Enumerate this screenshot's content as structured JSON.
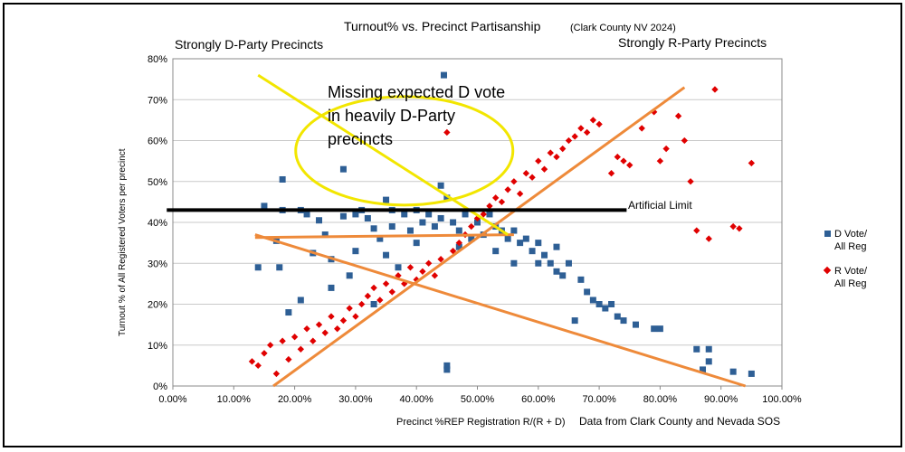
{
  "chart_data": {
    "type": "scatter",
    "title": "Turnout% vs. Precinct Partisanship",
    "subtitle": "(Clark County NV 2024)",
    "xlabel": "Precinct %REP Registration R/(R + D)",
    "ylabel": "Turnout % of All Registered Voters per precinct",
    "xlim": [
      0,
      1
    ],
    "ylim": [
      0,
      0.8
    ],
    "x_ticks": [
      "0.00%",
      "10.00%",
      "20.00%",
      "30.00%",
      "40.00%",
      "50.00%",
      "60.00%",
      "70.00%",
      "80.00%",
      "90.00%",
      "100.00%"
    ],
    "y_ticks": [
      "0%",
      "10%",
      "20%",
      "30%",
      "40%",
      "50%",
      "60%",
      "70%",
      "80%"
    ],
    "grid": "horizontal",
    "legend_position": "right",
    "series": [
      {
        "name": "D Vote/ All Reg",
        "marker": "square",
        "color": "#2e5f95",
        "trend": [
          [
            0.135,
            0.37
          ],
          [
            0.94,
            0.0
          ]
        ],
        "points": [
          [
            0.15,
            0.44
          ],
          [
            0.14,
            0.29
          ],
          [
            0.18,
            0.505
          ],
          [
            0.18,
            0.43
          ],
          [
            0.17,
            0.355
          ],
          [
            0.175,
            0.29
          ],
          [
            0.19,
            0.18
          ],
          [
            0.21,
            0.43
          ],
          [
            0.22,
            0.42
          ],
          [
            0.21,
            0.21
          ],
          [
            0.23,
            0.325
          ],
          [
            0.24,
            0.405
          ],
          [
            0.25,
            0.37
          ],
          [
            0.26,
            0.31
          ],
          [
            0.26,
            0.24
          ],
          [
            0.28,
            0.53
          ],
          [
            0.28,
            0.415
          ],
          [
            0.3,
            0.42
          ],
          [
            0.31,
            0.43
          ],
          [
            0.32,
            0.41
          ],
          [
            0.3,
            0.33
          ],
          [
            0.29,
            0.27
          ],
          [
            0.33,
            0.385
          ],
          [
            0.34,
            0.36
          ],
          [
            0.35,
            0.455
          ],
          [
            0.36,
            0.43
          ],
          [
            0.36,
            0.39
          ],
          [
            0.35,
            0.32
          ],
          [
            0.33,
            0.2
          ],
          [
            0.38,
            0.42
          ],
          [
            0.39,
            0.38
          ],
          [
            0.37,
            0.29
          ],
          [
            0.4,
            0.43
          ],
          [
            0.41,
            0.4
          ],
          [
            0.4,
            0.35
          ],
          [
            0.42,
            0.42
          ],
          [
            0.43,
            0.39
          ],
          [
            0.44,
            0.41
          ],
          [
            0.44,
            0.49
          ],
          [
            0.45,
            0.46
          ],
          [
            0.445,
            0.76
          ],
          [
            0.45,
            0.05
          ],
          [
            0.45,
            0.04
          ],
          [
            0.46,
            0.4
          ],
          [
            0.47,
            0.38
          ],
          [
            0.47,
            0.34
          ],
          [
            0.48,
            0.42
          ],
          [
            0.49,
            0.36
          ],
          [
            0.5,
            0.4
          ],
          [
            0.51,
            0.37
          ],
          [
            0.52,
            0.42
          ],
          [
            0.53,
            0.39
          ],
          [
            0.53,
            0.33
          ],
          [
            0.54,
            0.38
          ],
          [
            0.55,
            0.36
          ],
          [
            0.56,
            0.38
          ],
          [
            0.56,
            0.3
          ],
          [
            0.57,
            0.35
          ],
          [
            0.58,
            0.36
          ],
          [
            0.59,
            0.33
          ],
          [
            0.6,
            0.35
          ],
          [
            0.6,
            0.3
          ],
          [
            0.61,
            0.32
          ],
          [
            0.62,
            0.3
          ],
          [
            0.63,
            0.34
          ],
          [
            0.63,
            0.28
          ],
          [
            0.64,
            0.27
          ],
          [
            0.65,
            0.3
          ],
          [
            0.66,
            0.16
          ],
          [
            0.67,
            0.26
          ],
          [
            0.68,
            0.23
          ],
          [
            0.69,
            0.21
          ],
          [
            0.7,
            0.2
          ],
          [
            0.71,
            0.19
          ],
          [
            0.72,
            0.2
          ],
          [
            0.73,
            0.17
          ],
          [
            0.74,
            0.16
          ],
          [
            0.76,
            0.15
          ],
          [
            0.79,
            0.14
          ],
          [
            0.8,
            0.14
          ],
          [
            0.86,
            0.09
          ],
          [
            0.88,
            0.09
          ],
          [
            0.88,
            0.06
          ],
          [
            0.87,
            0.04
          ],
          [
            0.92,
            0.035
          ],
          [
            0.95,
            0.03
          ]
        ]
      },
      {
        "name": "R Vote/ All Reg",
        "marker": "diamond",
        "color": "#e00000",
        "trend": [
          [
            0.165,
            0.0
          ],
          [
            0.84,
            0.73
          ]
        ],
        "points": [
          [
            0.13,
            0.06
          ],
          [
            0.14,
            0.05
          ],
          [
            0.15,
            0.08
          ],
          [
            0.16,
            0.1
          ],
          [
            0.17,
            0.03
          ],
          [
            0.18,
            0.11
          ],
          [
            0.19,
            0.065
          ],
          [
            0.2,
            0.12
          ],
          [
            0.21,
            0.09
          ],
          [
            0.22,
            0.14
          ],
          [
            0.23,
            0.11
          ],
          [
            0.24,
            0.15
          ],
          [
            0.25,
            0.13
          ],
          [
            0.26,
            0.17
          ],
          [
            0.27,
            0.14
          ],
          [
            0.28,
            0.16
          ],
          [
            0.29,
            0.19
          ],
          [
            0.3,
            0.17
          ],
          [
            0.31,
            0.2
          ],
          [
            0.32,
            0.22
          ],
          [
            0.33,
            0.24
          ],
          [
            0.34,
            0.21
          ],
          [
            0.35,
            0.25
          ],
          [
            0.36,
            0.23
          ],
          [
            0.37,
            0.27
          ],
          [
            0.38,
            0.25
          ],
          [
            0.39,
            0.29
          ],
          [
            0.4,
            0.26
          ],
          [
            0.41,
            0.28
          ],
          [
            0.42,
            0.3
          ],
          [
            0.43,
            0.27
          ],
          [
            0.44,
            0.31
          ],
          [
            0.45,
            0.62
          ],
          [
            0.46,
            0.33
          ],
          [
            0.47,
            0.35
          ],
          [
            0.48,
            0.37
          ],
          [
            0.49,
            0.39
          ],
          [
            0.5,
            0.41
          ],
          [
            0.51,
            0.42
          ],
          [
            0.52,
            0.44
          ],
          [
            0.53,
            0.46
          ],
          [
            0.54,
            0.45
          ],
          [
            0.55,
            0.48
          ],
          [
            0.56,
            0.5
          ],
          [
            0.57,
            0.47
          ],
          [
            0.58,
            0.52
          ],
          [
            0.59,
            0.51
          ],
          [
            0.6,
            0.55
          ],
          [
            0.61,
            0.53
          ],
          [
            0.62,
            0.57
          ],
          [
            0.63,
            0.56
          ],
          [
            0.64,
            0.58
          ],
          [
            0.65,
            0.6
          ],
          [
            0.66,
            0.61
          ],
          [
            0.67,
            0.63
          ],
          [
            0.68,
            0.62
          ],
          [
            0.69,
            0.65
          ],
          [
            0.7,
            0.64
          ],
          [
            0.72,
            0.52
          ],
          [
            0.73,
            0.56
          ],
          [
            0.74,
            0.55
          ],
          [
            0.75,
            0.54
          ],
          [
            0.77,
            0.63
          ],
          [
            0.79,
            0.67
          ],
          [
            0.8,
            0.55
          ],
          [
            0.81,
            0.58
          ],
          [
            0.83,
            0.66
          ],
          [
            0.84,
            0.6
          ],
          [
            0.85,
            0.5
          ],
          [
            0.86,
            0.38
          ],
          [
            0.88,
            0.36
          ],
          [
            0.89,
            0.725
          ],
          [
            0.92,
            0.39
          ],
          [
            0.93,
            0.385
          ],
          [
            0.95,
            0.545
          ]
        ]
      }
    ],
    "annotations": {
      "strongly_d": "Strongly D-Party Precincts",
      "strongly_r": "Strongly R-Party Precincts",
      "missing_d_line1": "Missing expected D vote",
      "missing_d_line2": "in heavily D-Party",
      "missing_d_line3": "precincts",
      "artificial_limit": "Artificial Limit",
      "artificial_limit_value": 0.43,
      "data_source": "Data from Clark County and Nevada SOS",
      "overlay_color_limit": "#000000",
      "overlay_color_ellipse": "#f2e600",
      "overlay_color_trend": "#ee8a3a"
    },
    "legend": [
      {
        "line1": "D Vote/",
        "line2": "All Reg"
      },
      {
        "line1": "R Vote/",
        "line2": "All Reg"
      }
    ]
  }
}
